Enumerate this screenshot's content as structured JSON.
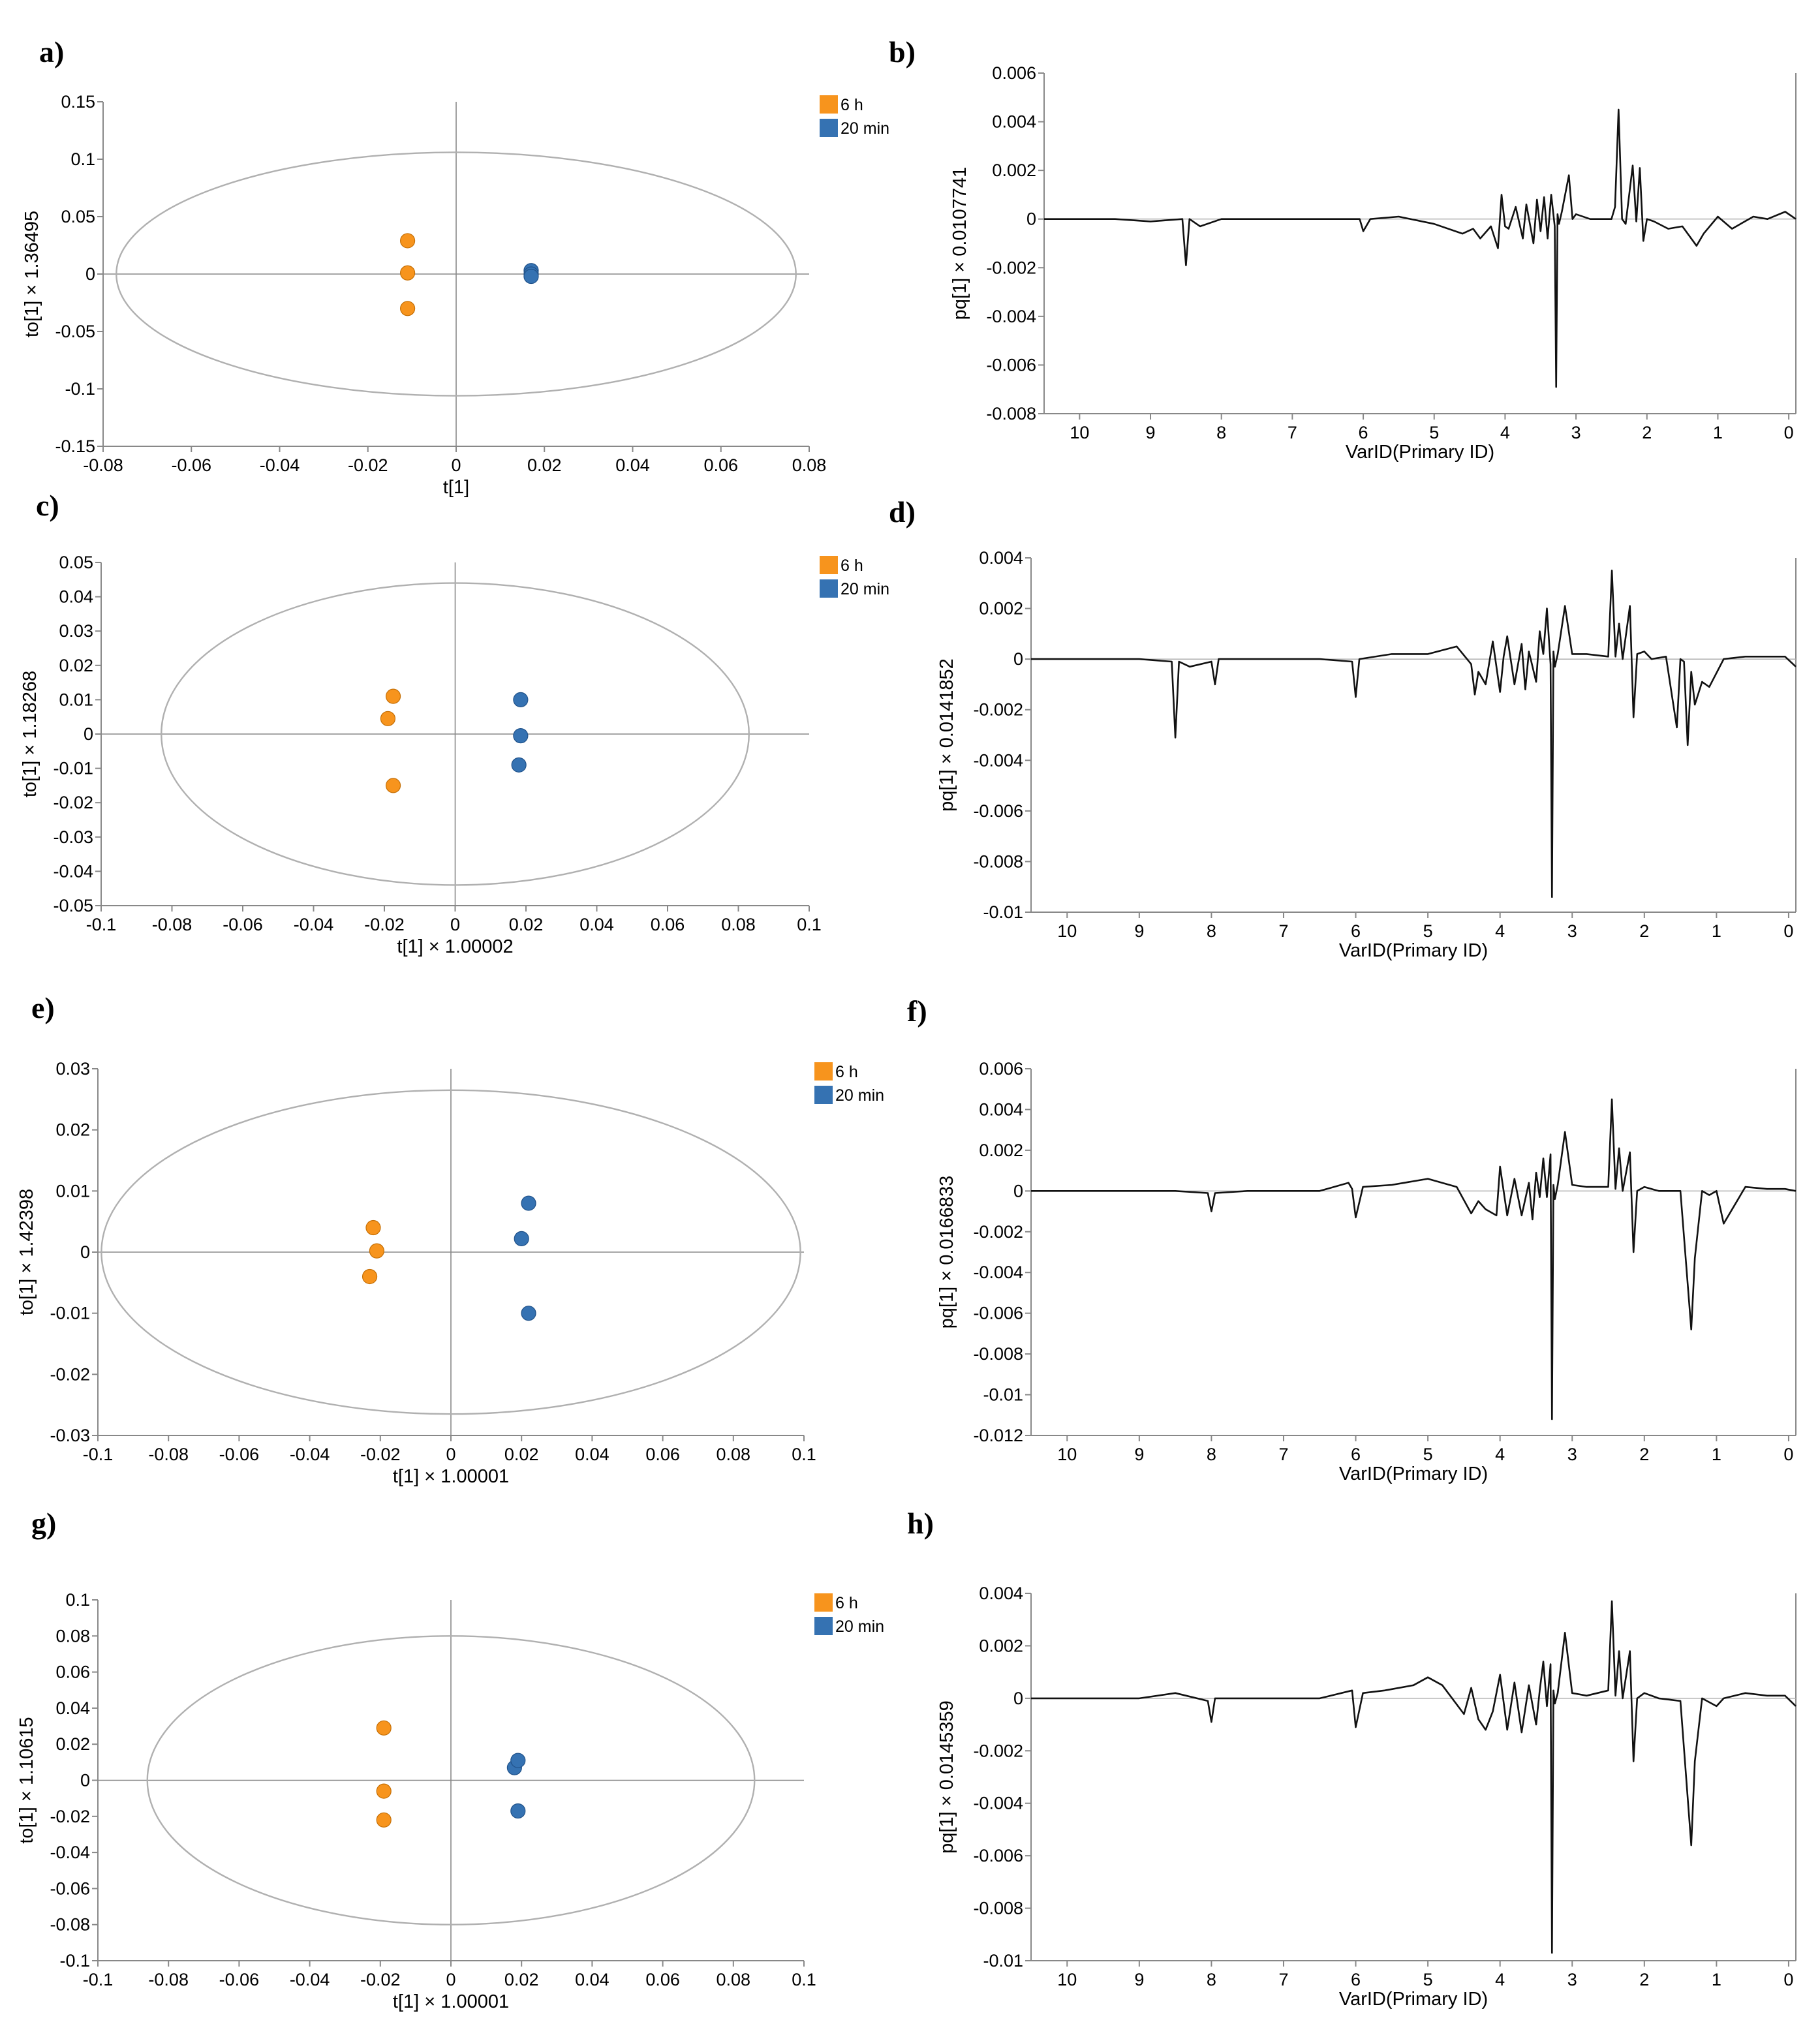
{
  "colors": {
    "group_6h": "#F7941D",
    "group_20min": "#3572B2",
    "line": "#111111",
    "axis": "#888888",
    "ellipse": "#b0b0b0"
  },
  "chart_data": [
    {
      "panel": "a)",
      "type": "scatter",
      "xlabel": "t[1]",
      "ylabel": "to[1] × 1.36495",
      "xlim": [
        -0.08,
        0.08
      ],
      "ylim": [
        -0.15,
        0.15
      ],
      "xticks": [
        -0.08,
        -0.06,
        -0.04,
        -0.02,
        0,
        0.02,
        0.04,
        0.06,
        0.08
      ],
      "yticks": [
        -0.15,
        -0.1,
        -0.05,
        0,
        0.05,
        0.1,
        0.15
      ],
      "xtick_labels": [
        "-0.08",
        "-0.06",
        "-0.04",
        "-0.02",
        "0",
        "0.02",
        "0.04",
        "0.06",
        "0.08"
      ],
      "ytick_labels": [
        "-0.15",
        "-0.1",
        "-0.05",
        "0",
        "0.05",
        "0.1",
        "0.15"
      ],
      "ellipse": {
        "rx": 0.077,
        "ry": 0.106
      },
      "legend": [
        "6 h",
        "20 min"
      ],
      "series": [
        {
          "name": "6 h",
          "points": [
            [
              -0.011,
              0.029
            ],
            [
              -0.011,
              0.001
            ],
            [
              -0.011,
              -0.03
            ]
          ]
        },
        {
          "name": "20 min",
          "points": [
            [
              0.017,
              0.003
            ],
            [
              0.017,
              0.0
            ],
            [
              0.017,
              -0.002
            ]
          ]
        }
      ]
    },
    {
      "panel": "b)",
      "type": "line",
      "xlabel": "VarID(Primary ID)",
      "ylabel": "pq[1] × 0.0107741",
      "xlim": [
        10.5,
        -0.1
      ],
      "ylim": [
        -0.008,
        0.006
      ],
      "xticks": [
        10,
        9,
        8,
        7,
        6,
        5,
        4,
        3,
        2,
        1,
        0
      ],
      "yticks": [
        -0.008,
        -0.006,
        -0.004,
        -0.002,
        0,
        0.002,
        0.004,
        0.006
      ],
      "xtick_labels": [
        "10",
        "9",
        "8",
        "7",
        "6",
        "5",
        "4",
        "3",
        "2",
        "1",
        "0"
      ],
      "ytick_labels": [
        "-0.008",
        "-0.006",
        "-0.004",
        "-0.002",
        "0",
        "0.002",
        "0.004",
        "0.006"
      ],
      "x": [
        10.5,
        10,
        9.5,
        9,
        8.55,
        8.5,
        8.45,
        8.3,
        8,
        7.5,
        7,
        6.5,
        6.05,
        6.0,
        5.9,
        5.5,
        5.0,
        4.6,
        4.45,
        4.35,
        4.2,
        4.1,
        4.05,
        4.0,
        3.95,
        3.85,
        3.75,
        3.7,
        3.6,
        3.55,
        3.5,
        3.45,
        3.4,
        3.35,
        3.3,
        3.28,
        3.26,
        3.24,
        3.2,
        3.1,
        3.05,
        3.0,
        2.8,
        2.5,
        2.45,
        2.4,
        2.35,
        2.3,
        2.2,
        2.15,
        2.1,
        2.05,
        2.0,
        1.9,
        1.7,
        1.5,
        1.3,
        1.2,
        1.0,
        0.8,
        0.5,
        0.3,
        0.05,
        -0.1
      ],
      "values": [
        0.0,
        0.0,
        0.0,
        -0.0001,
        0.0,
        -0.0019,
        0.0,
        -0.0003,
        0.0,
        0.0,
        0.0,
        0.0,
        0.0,
        -0.0005,
        0.0,
        0.0001,
        -0.0002,
        -0.0006,
        -0.0004,
        -0.0008,
        -0.0003,
        -0.0012,
        0.001,
        -0.0003,
        -0.0004,
        0.0005,
        -0.0008,
        0.0006,
        -0.001,
        0.0008,
        -0.0005,
        0.0009,
        -0.0008,
        0.001,
        -0.0003,
        -0.0069,
        0.0002,
        -0.0002,
        0.0003,
        0.0018,
        0.0,
        0.0002,
        0.0,
        0.0,
        0.0005,
        0.0045,
        0.0,
        -0.0002,
        0.0022,
        -0.0001,
        0.0021,
        -0.0009,
        0.0,
        -0.0001,
        -0.0004,
        -0.0003,
        -0.0011,
        -0.0006,
        0.0001,
        -0.0004,
        0.0001,
        0.0,
        0.0003,
        0.0
      ]
    },
    {
      "panel": "c)",
      "type": "scatter",
      "xlabel": "t[1] × 1.00002",
      "ylabel": "to[1] × 1.18268",
      "xlim": [
        -0.1,
        0.1
      ],
      "ylim": [
        -0.05,
        0.05
      ],
      "xticks": [
        -0.1,
        -0.08,
        -0.06,
        -0.04,
        -0.02,
        0,
        0.02,
        0.04,
        0.06,
        0.08,
        0.1
      ],
      "yticks": [
        -0.05,
        -0.04,
        -0.03,
        -0.02,
        -0.01,
        0,
        0.01,
        0.02,
        0.03,
        0.04,
        0.05
      ],
      "xtick_labels": [
        "-0.1",
        "-0.08",
        "-0.06",
        "-0.04",
        "-0.02",
        "0",
        "0.02",
        "0.04",
        "0.06",
        "0.08",
        "0.1"
      ],
      "ytick_labels": [
        "-0.05",
        "-0.04",
        "-0.03",
        "-0.02",
        "-0.01",
        "0",
        "0.01",
        "0.02",
        "0.03",
        "0.04",
        "0.05"
      ],
      "ellipse": {
        "rx": 0.083,
        "ry": 0.044
      },
      "legend": [
        "6 h",
        "20 min"
      ],
      "series": [
        {
          "name": "6 h",
          "points": [
            [
              -0.0175,
              0.011
            ],
            [
              -0.019,
              0.0045
            ],
            [
              -0.0175,
              -0.015
            ]
          ]
        },
        {
          "name": "20 min",
          "points": [
            [
              0.0185,
              0.01
            ],
            [
              0.0185,
              -0.0005
            ],
            [
              0.018,
              -0.009
            ]
          ]
        }
      ]
    },
    {
      "panel": "d)",
      "type": "line",
      "xlabel": "VarID(Primary ID)",
      "ylabel": "pq[1] × 0.0141852",
      "xlim": [
        10.5,
        -0.1
      ],
      "ylim": [
        -0.01,
        0.004
      ],
      "xticks": [
        10,
        9,
        8,
        7,
        6,
        5,
        4,
        3,
        2,
        1,
        0
      ],
      "yticks": [
        -0.01,
        -0.008,
        -0.006,
        -0.004,
        -0.002,
        0,
        0.002,
        0.004
      ],
      "xtick_labels": [
        "10",
        "9",
        "8",
        "7",
        "6",
        "5",
        "4",
        "3",
        "2",
        "1",
        "0"
      ],
      "ytick_labels": [
        "-0.01",
        "-0.008",
        "-0.006",
        "-0.004",
        "-0.002",
        "0",
        "0.002",
        "0.004"
      ],
      "x": [
        10.5,
        10,
        9.5,
        9,
        8.55,
        8.5,
        8.45,
        8.3,
        8.0,
        7.95,
        7.9,
        7.5,
        7.0,
        6.5,
        6.05,
        6.0,
        5.95,
        5.5,
        5.0,
        4.6,
        4.4,
        4.35,
        4.3,
        4.2,
        4.1,
        4.0,
        3.95,
        3.9,
        3.8,
        3.7,
        3.65,
        3.6,
        3.5,
        3.45,
        3.4,
        3.35,
        3.3,
        3.28,
        3.26,
        3.24,
        3.2,
        3.1,
        3.0,
        2.8,
        2.5,
        2.45,
        2.4,
        2.35,
        2.3,
        2.2,
        2.15,
        2.1,
        2.0,
        1.9,
        1.7,
        1.55,
        1.5,
        1.45,
        1.4,
        1.35,
        1.3,
        1.2,
        1.1,
        0.9,
        0.6,
        0.3,
        0.05,
        -0.1
      ],
      "values": [
        0.0,
        0.0,
        0.0,
        0.0,
        -0.0001,
        -0.0031,
        -0.0001,
        -0.0003,
        -0.0001,
        -0.001,
        0.0,
        0.0,
        0.0,
        0.0,
        -0.0001,
        -0.0015,
        0.0,
        0.0002,
        0.0002,
        0.0005,
        -0.0002,
        -0.0014,
        -0.0005,
        -0.001,
        0.0007,
        -0.0013,
        0.0001,
        0.0009,
        -0.001,
        0.0006,
        -0.0012,
        0.0003,
        -0.0009,
        0.0011,
        0.0002,
        0.002,
        -0.0002,
        -0.0094,
        0.0003,
        -0.0003,
        0.0002,
        0.0021,
        0.0002,
        0.0002,
        0.0001,
        0.0035,
        0.0001,
        0.0014,
        0.0,
        0.0021,
        -0.0023,
        0.0002,
        0.0003,
        0.0,
        0.0001,
        -0.0027,
        0.0,
        -0.0001,
        -0.0034,
        -0.0005,
        -0.0018,
        -0.0009,
        -0.0011,
        0.0,
        0.0001,
        0.0001,
        0.0001,
        -0.0003
      ]
    },
    {
      "panel": "e)",
      "type": "scatter",
      "xlabel": "t[1] × 1.00001",
      "ylabel": "to[1] × 1.42398",
      "xlim": [
        -0.1,
        0.1
      ],
      "ylim": [
        -0.03,
        0.03
      ],
      "xticks": [
        -0.1,
        -0.08,
        -0.06,
        -0.04,
        -0.02,
        0,
        0.02,
        0.04,
        0.06,
        0.08,
        0.1
      ],
      "yticks": [
        -0.03,
        -0.02,
        -0.01,
        0,
        0.01,
        0.02,
        0.03
      ],
      "xtick_labels": [
        "-0.1",
        "-0.08",
        "-0.06",
        "-0.04",
        "-0.02",
        "0",
        "0.02",
        "0.04",
        "0.06",
        "0.08",
        "0.1"
      ],
      "ytick_labels": [
        "-0.03",
        "-0.02",
        "-0.01",
        "0",
        "0.01",
        "0.02",
        "0.03"
      ],
      "ellipse": {
        "rx": 0.099,
        "ry": 0.0265
      },
      "legend": [
        "6 h",
        "20 min"
      ],
      "series": [
        {
          "name": "6 h",
          "points": [
            [
              -0.022,
              0.004
            ],
            [
              -0.021,
              0.0002
            ],
            [
              -0.023,
              -0.004
            ]
          ]
        },
        {
          "name": "20 min",
          "points": [
            [
              0.022,
              0.008
            ],
            [
              0.02,
              0.0022
            ],
            [
              0.022,
              -0.01
            ]
          ]
        }
      ]
    },
    {
      "panel": "f)",
      "type": "line",
      "xlabel": "VarID(Primary ID)",
      "ylabel": "pq[1] × 0.0166833",
      "xlim": [
        10.5,
        -0.1
      ],
      "ylim": [
        -0.012,
        0.006
      ],
      "xticks": [
        10,
        9,
        8,
        7,
        6,
        5,
        4,
        3,
        2,
        1,
        0
      ],
      "yticks": [
        -0.012,
        -0.01,
        -0.008,
        -0.006,
        -0.004,
        -0.002,
        0,
        0.002,
        0.004,
        0.006
      ],
      "xtick_labels": [
        "10",
        "9",
        "8",
        "7",
        "6",
        "5",
        "4",
        "3",
        "2",
        "1",
        "0"
      ],
      "ytick_labels": [
        "-0.012",
        "-0.01",
        "-0.008",
        "-0.006",
        "-0.004",
        "-0.002",
        "0",
        "0.002",
        "0.004",
        "0.006"
      ],
      "x": [
        10.5,
        10,
        9.5,
        9,
        8.5,
        8.05,
        8.0,
        7.95,
        7.5,
        7.0,
        6.5,
        6.1,
        6.05,
        6.0,
        5.9,
        5.5,
        5.0,
        4.6,
        4.4,
        4.3,
        4.2,
        4.05,
        4.0,
        3.9,
        3.8,
        3.7,
        3.6,
        3.55,
        3.5,
        3.45,
        3.4,
        3.35,
        3.3,
        3.28,
        3.26,
        3.24,
        3.2,
        3.1,
        3.0,
        2.8,
        2.5,
        2.45,
        2.4,
        2.35,
        2.3,
        2.2,
        2.15,
        2.1,
        2.0,
        1.8,
        1.5,
        1.35,
        1.3,
        1.2,
        1.1,
        1.0,
        0.9,
        0.6,
        0.3,
        0.05,
        -0.1
      ],
      "values": [
        0.0,
        0.0,
        0.0,
        0.0,
        0.0,
        -0.0001,
        -0.001,
        -0.0001,
        0.0,
        0.0,
        0.0,
        0.0004,
        0.0001,
        -0.0013,
        0.0002,
        0.0003,
        0.0006,
        0.0002,
        -0.0011,
        -0.0005,
        -0.0009,
        -0.0012,
        0.0012,
        -0.0012,
        0.0006,
        -0.0012,
        0.0004,
        -0.0014,
        0.0009,
        -0.0003,
        0.0016,
        -0.0003,
        0.0018,
        -0.0112,
        0.0003,
        -0.0004,
        0.0003,
        0.0029,
        0.0003,
        0.0002,
        0.0002,
        0.0045,
        0.0001,
        0.0021,
        0.0,
        0.0019,
        -0.003,
        0.0,
        0.0002,
        0.0,
        0.0,
        -0.0068,
        -0.0033,
        0.0,
        -0.0002,
        0.0,
        -0.0016,
        0.0002,
        0.0001,
        0.0001,
        0.0
      ]
    },
    {
      "panel": "g)",
      "type": "scatter",
      "xlabel": "t[1] × 1.00001",
      "ylabel": "to[1] × 1.10615",
      "xlim": [
        -0.1,
        0.1
      ],
      "ylim": [
        -0.1,
        0.1
      ],
      "xticks": [
        -0.1,
        -0.08,
        -0.06,
        -0.04,
        -0.02,
        0,
        0.02,
        0.04,
        0.06,
        0.08,
        0.1
      ],
      "yticks": [
        -0.1,
        -0.08,
        -0.06,
        -0.04,
        -0.02,
        0,
        0.02,
        0.04,
        0.06,
        0.08,
        0.1
      ],
      "xtick_labels": [
        "-0.1",
        "-0.08",
        "-0.06",
        "-0.04",
        "-0.02",
        "0",
        "0.02",
        "0.04",
        "0.06",
        "0.08",
        "0.1"
      ],
      "ytick_labels": [
        "-0.1",
        "-0.08",
        "-0.06",
        "-0.04",
        "-0.02",
        "0",
        "0.02",
        "0.04",
        "0.06",
        "0.08",
        "0.1"
      ],
      "ellipse": {
        "rx": 0.086,
        "ry": 0.08
      },
      "legend": [
        "6 h",
        "20 min"
      ],
      "series": [
        {
          "name": "6 h",
          "points": [
            [
              -0.019,
              0.029
            ],
            [
              -0.019,
              -0.006
            ],
            [
              -0.019,
              -0.022
            ]
          ]
        },
        {
          "name": "20 min",
          "points": [
            [
              0.018,
              0.007
            ],
            [
              0.019,
              0.011
            ],
            [
              0.019,
              -0.017
            ]
          ]
        }
      ]
    },
    {
      "panel": "h)",
      "type": "line",
      "xlabel": "VarID(Primary ID)",
      "ylabel": "pq[1] × 0.0145359",
      "xlim": [
        10.5,
        -0.1
      ],
      "ylim": [
        -0.01,
        0.004
      ],
      "xticks": [
        10,
        9,
        8,
        7,
        6,
        5,
        4,
        3,
        2,
        1,
        0
      ],
      "yticks": [
        -0.01,
        -0.008,
        -0.006,
        -0.004,
        -0.002,
        0,
        0.002,
        0.004
      ],
      "xtick_labels": [
        "10",
        "9",
        "8",
        "7",
        "6",
        "5",
        "4",
        "3",
        "2",
        "1",
        "0"
      ],
      "ytick_labels": [
        "-0.01",
        "-0.008",
        "-0.006",
        "-0.004",
        "-0.002",
        "0",
        "0.002",
        "0.004"
      ],
      "x": [
        10.5,
        10,
        9.5,
        9,
        8.5,
        8.05,
        8.0,
        7.95,
        7.5,
        7.0,
        6.5,
        6.05,
        6.0,
        5.9,
        5.6,
        5.2,
        5.0,
        4.8,
        4.5,
        4.4,
        4.3,
        4.2,
        4.1,
        4.0,
        3.9,
        3.8,
        3.7,
        3.6,
        3.5,
        3.45,
        3.4,
        3.35,
        3.3,
        3.28,
        3.26,
        3.24,
        3.2,
        3.1,
        3.0,
        2.8,
        2.5,
        2.45,
        2.4,
        2.35,
        2.3,
        2.2,
        2.15,
        2.1,
        2.0,
        1.8,
        1.5,
        1.35,
        1.3,
        1.2,
        1.0,
        0.9,
        0.6,
        0.3,
        0.05,
        -0.1
      ],
      "values": [
        0.0,
        0.0,
        0.0,
        0.0,
        0.0002,
        -0.0001,
        -0.0009,
        0.0,
        0.0,
        0.0,
        0.0,
        0.0003,
        -0.0011,
        0.0002,
        0.0003,
        0.0005,
        0.0008,
        0.0005,
        -0.0006,
        0.0004,
        -0.0008,
        -0.0012,
        -0.0005,
        0.0009,
        -0.0012,
        0.0006,
        -0.0013,
        0.0005,
        -0.001,
        0.0003,
        0.0014,
        -0.0003,
        0.0013,
        -0.0097,
        0.0003,
        -0.0002,
        0.0002,
        0.0025,
        0.0002,
        0.0001,
        0.0003,
        0.0037,
        0.0001,
        0.0018,
        0.0,
        0.0018,
        -0.0024,
        0.0,
        0.0002,
        0.0,
        -0.0001,
        -0.0056,
        -0.0024,
        0.0,
        -0.0003,
        0.0,
        0.0002,
        0.0001,
        0.0001,
        -0.0003
      ]
    }
  ]
}
